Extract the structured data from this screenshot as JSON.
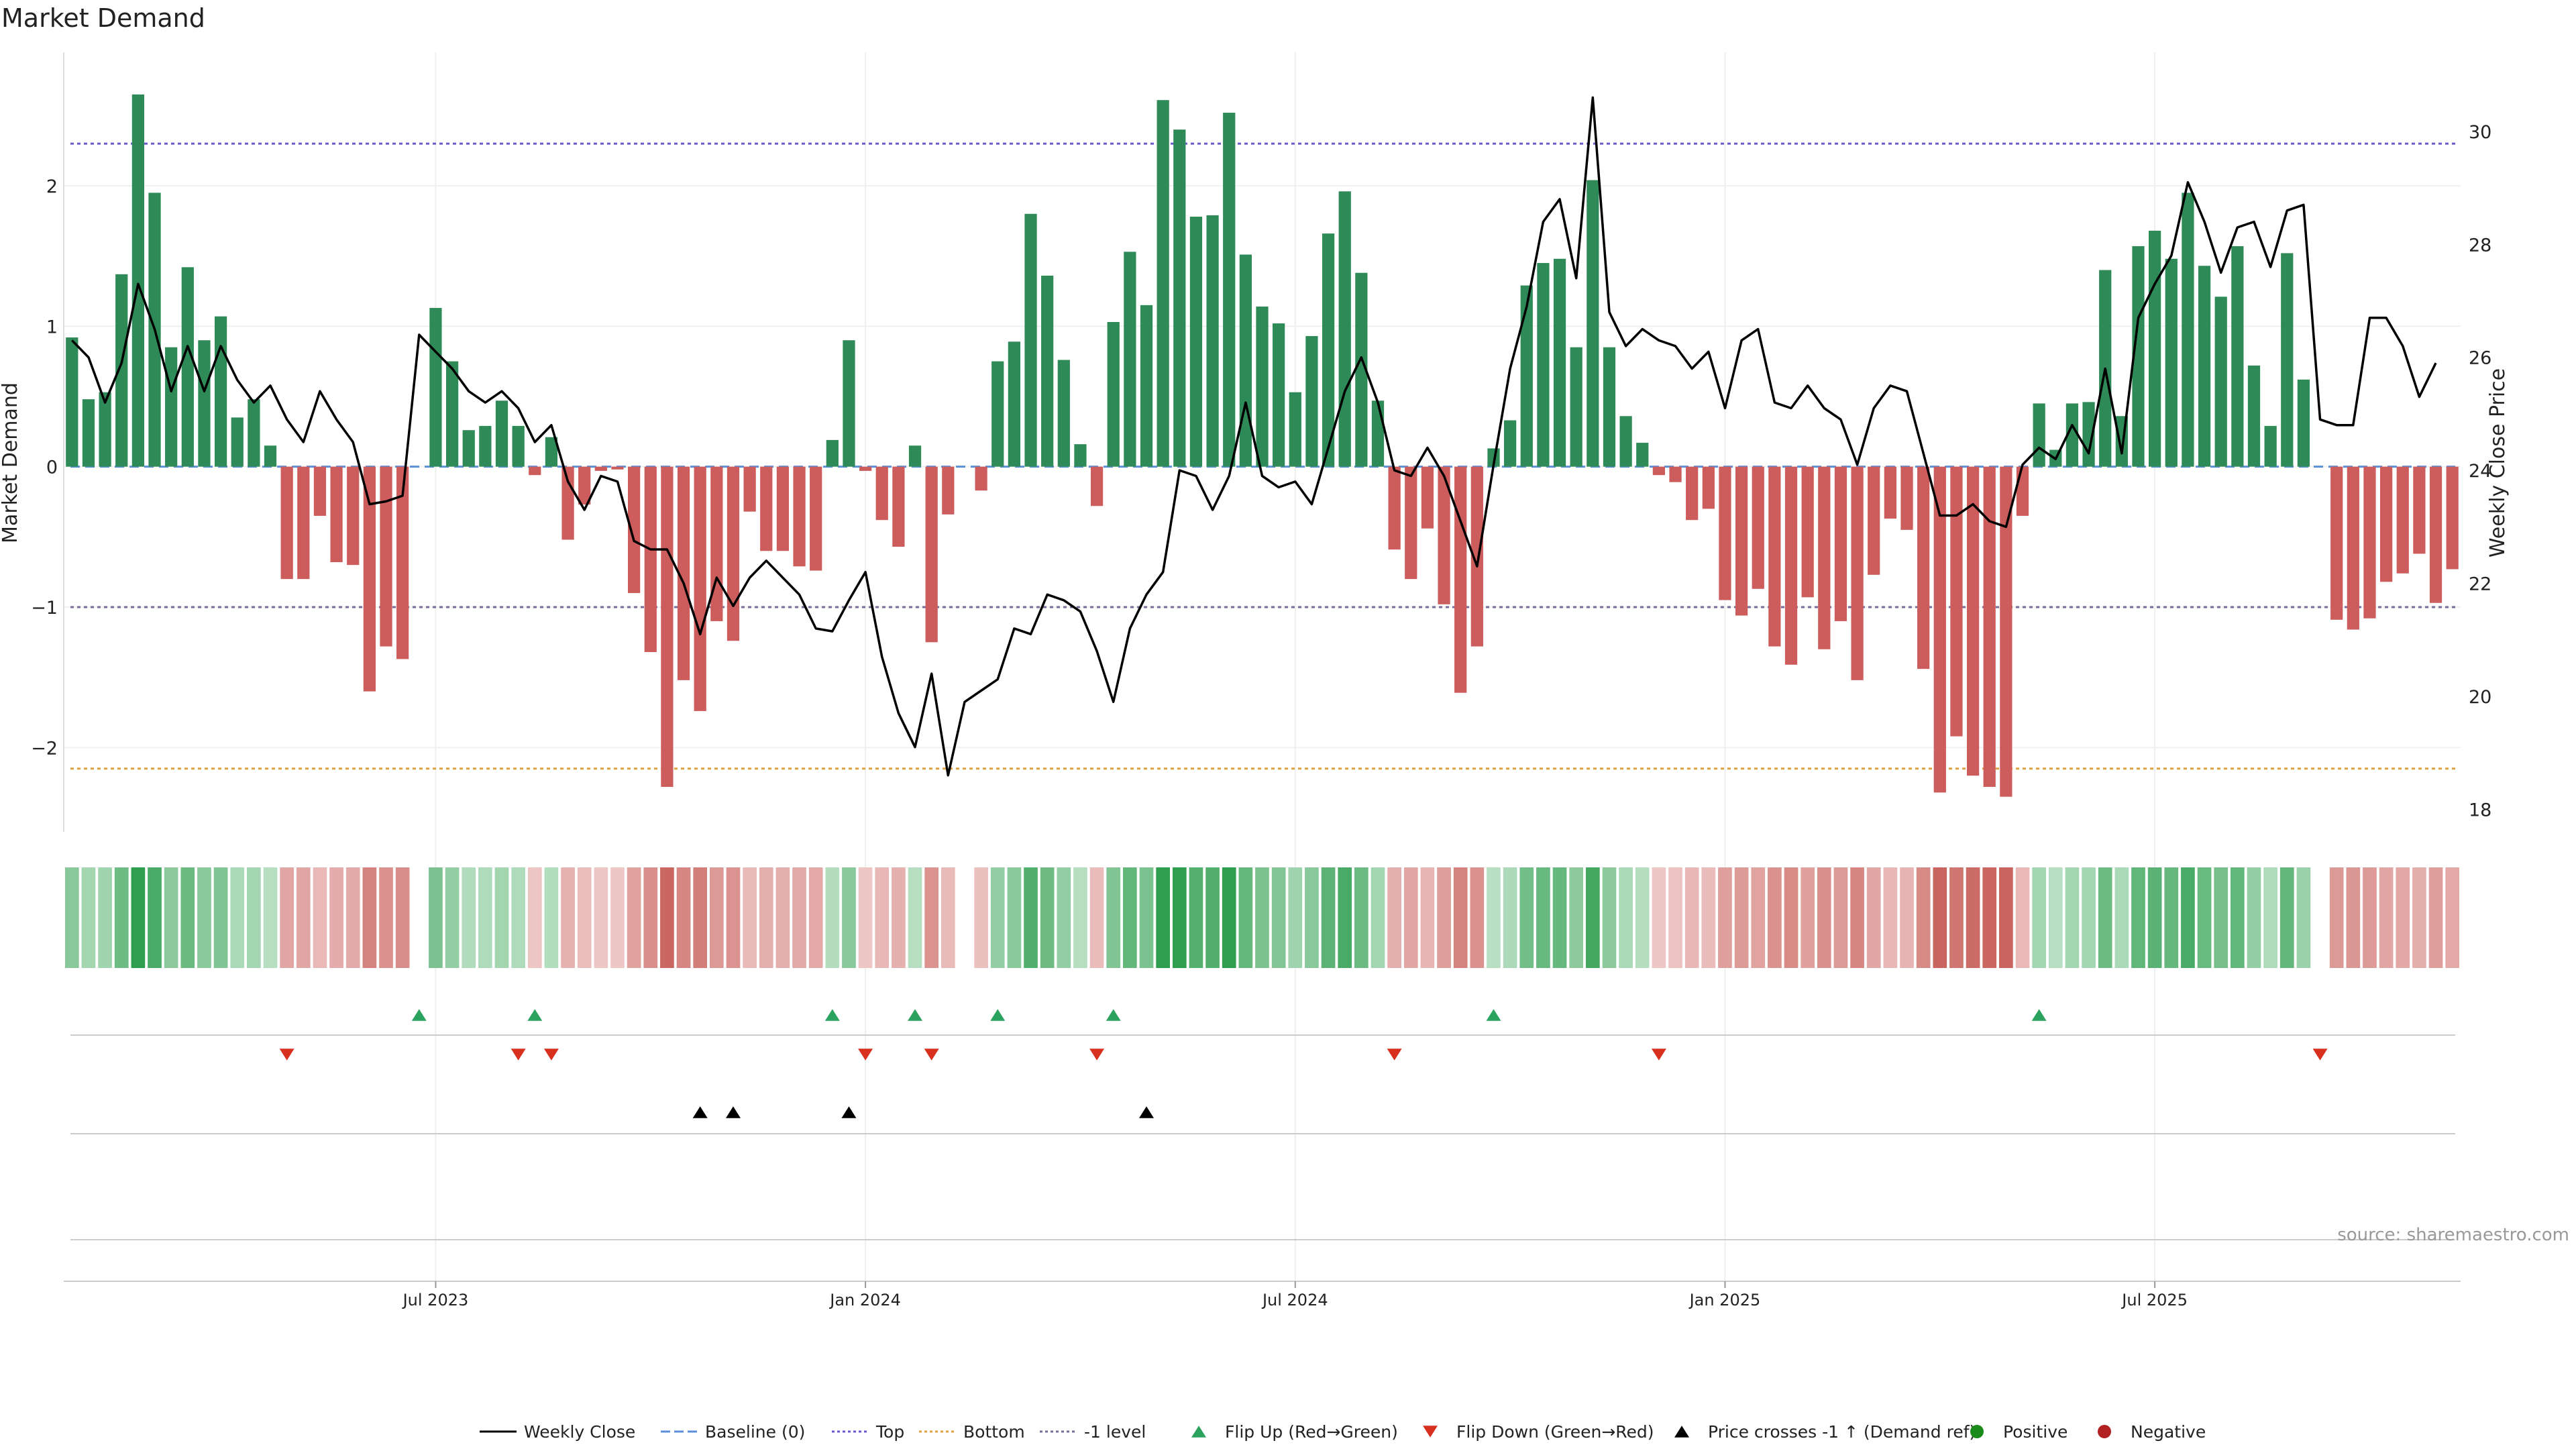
{
  "chart_data": {
    "type": "bar",
    "title": "Market Demand",
    "ylabel": "Market Demand",
    "y2label": "Weekly Close Price",
    "ylim": [
      -2.6,
      2.95
    ],
    "y2lim": [
      17.6,
      31.4
    ],
    "yticks": [
      -2,
      -1,
      0,
      1,
      2
    ],
    "yticklabels": [
      "−2",
      "−1",
      "0",
      "1",
      "2"
    ],
    "y2ticks": [
      18,
      20,
      22,
      24,
      26,
      28,
      30
    ],
    "top_level": 2.3,
    "bottom_level": -2.15,
    "minus1_level": -1.0,
    "date_ticks": [
      {
        "index": 22,
        "label": "Jul 2023"
      },
      {
        "index": 48,
        "label": "Jan 2024"
      },
      {
        "index": 74,
        "label": "Jul 2024"
      },
      {
        "index": 100,
        "label": "Jan 2025"
      },
      {
        "index": 126,
        "label": "Jul 2025"
      }
    ],
    "demand": [
      0.92,
      0.48,
      0.53,
      1.37,
      2.65,
      1.95,
      0.85,
      1.42,
      0.9,
      1.07,
      0.35,
      0.48,
      0.15,
      -0.8,
      -0.8,
      -0.35,
      -0.68,
      -0.7,
      -1.6,
      -1.28,
      -1.37,
      0,
      1.13,
      0.75,
      0.26,
      0.29,
      0.47,
      0.29,
      -0.06,
      0.21,
      -0.52,
      -0.27,
      -0.03,
      -0.02,
      -0.9,
      -1.32,
      -2.28,
      -1.52,
      -1.74,
      -1.1,
      -1.24,
      -0.32,
      -0.6,
      -0.6,
      -0.71,
      -0.74,
      0.19,
      0.9,
      -0.03,
      -0.38,
      -0.57,
      0.15,
      -1.25,
      -0.34,
      0,
      -0.17,
      0.75,
      0.89,
      1.8,
      1.36,
      0.76,
      0.16,
      -0.28,
      1.03,
      1.53,
      1.15,
      2.61,
      2.4,
      1.78,
      1.79,
      2.52,
      1.51,
      1.14,
      1.02,
      0.53,
      0.93,
      1.66,
      1.96,
      1.38,
      0.47,
      -0.59,
      -0.8,
      -0.44,
      -0.98,
      -1.61,
      -1.28,
      0.13,
      0.33,
      1.29,
      1.45,
      1.48,
      0.85,
      2.04,
      0.85,
      0.36,
      0.17,
      -0.06,
      -0.11,
      -0.38,
      -0.3,
      -0.95,
      -1.06,
      -0.87,
      -1.28,
      -1.41,
      -0.93,
      -1.3,
      -1.1,
      -1.52,
      -0.77,
      -0.37,
      -0.45,
      -1.44,
      -2.32,
      -1.92,
      -2.2,
      -2.28,
      -2.35,
      -0.35,
      0.45,
      0.12,
      0.45,
      0.46,
      1.4,
      0.36,
      1.57,
      1.68,
      1.48,
      1.95,
      1.43,
      1.21,
      1.57,
      0.72,
      0.29,
      1.52,
      0.62,
      0,
      -1.09,
      -1.16,
      -1.08,
      -0.82,
      -0.76,
      -0.62,
      -0.97,
      -0.73
    ],
    "price_x": [
      0,
      1,
      2,
      3,
      4,
      5,
      6,
      7,
      8,
      9,
      10,
      11,
      12,
      13,
      14,
      15,
      16,
      17,
      18,
      19,
      20,
      21,
      22,
      23,
      24,
      25,
      26,
      27,
      28,
      29,
      30,
      31,
      32,
      33,
      34,
      35,
      36,
      37,
      38,
      39,
      40,
      41,
      42,
      43,
      44,
      45,
      46,
      47,
      48,
      49,
      50,
      51,
      52,
      53,
      54,
      55,
      56,
      57,
      58,
      59,
      60,
      61,
      62,
      63,
      64,
      65,
      66,
      67,
      68,
      69,
      70,
      71,
      72,
      73,
      74,
      75,
      76,
      77,
      78,
      79,
      80,
      81,
      82,
      83,
      84,
      85,
      86,
      87,
      88,
      89,
      90,
      91,
      92,
      93,
      94,
      95,
      96,
      97,
      98,
      99,
      100,
      101,
      102,
      103,
      104,
      105,
      106,
      107,
      108,
      109,
      110,
      111,
      112,
      113,
      114,
      115,
      116,
      117,
      118,
      119,
      120,
      121,
      122,
      123,
      124,
      125,
      126,
      127,
      128,
      129,
      130,
      131,
      132,
      133,
      134,
      135,
      136,
      137,
      138,
      139,
      140,
      141,
      142,
      143
    ],
    "price": [
      26.3,
      26.0,
      25.2,
      25.9,
      27.3,
      26.5,
      25.4,
      26.2,
      25.4,
      26.2,
      25.6,
      25.2,
      25.5,
      24.9,
      24.5,
      25.4,
      24.9,
      24.5,
      23.4,
      23.45,
      23.55,
      26.4,
      26.1,
      25.8,
      25.4,
      25.2,
      25.4,
      25.1,
      24.5,
      24.8,
      23.8,
      23.3,
      23.9,
      23.8,
      22.75,
      22.6,
      22.6,
      22.0,
      21.1,
      22.1,
      21.6,
      22.1,
      22.4,
      22.1,
      21.8,
      21.2,
      21.15,
      21.7,
      22.2,
      20.7,
      19.7,
      19.1,
      20.4,
      18.6,
      19.9,
      20.1,
      20.3,
      21.2,
      21.1,
      21.8,
      21.7,
      21.5,
      20.8,
      19.9,
      21.2,
      21.8,
      22.2,
      24.0,
      23.9,
      23.3,
      23.9,
      25.2,
      23.9,
      23.7,
      23.8,
      23.4,
      24.4,
      25.4,
      26.0,
      25.2,
      24.0,
      23.9,
      24.4,
      23.9,
      23.1,
      22.3,
      24.1,
      25.8,
      26.9,
      28.4,
      28.8,
      27.4,
      30.6,
      26.8,
      26.2,
      26.5,
      26.3,
      26.2,
      25.8,
      26.1,
      25.1,
      26.3,
      26.5,
      25.2,
      25.1,
      25.5,
      25.1,
      24.9,
      24.1,
      25.1,
      25.5,
      25.4,
      24.3,
      23.2,
      23.2,
      23.4,
      23.1,
      23.0,
      24.1,
      24.4,
      24.2,
      24.8,
      24.3,
      25.8,
      24.3,
      26.7,
      27.3,
      27.8,
      29.1,
      28.4,
      27.5,
      28.3,
      28.4,
      27.6,
      28.6,
      28.7,
      24.9,
      24.8,
      24.8,
      26.7,
      26.7,
      26.2,
      25.3,
      25.9
    ],
    "flip_up": [
      21,
      28,
      46,
      51,
      56,
      63,
      86,
      119
    ],
    "flip_down": [
      13,
      27,
      29,
      48,
      52,
      62,
      80,
      96,
      136
    ],
    "price_cross": [
      38,
      40,
      47,
      65
    ],
    "legend": [
      {
        "key": "weekly-close",
        "label": "Weekly Close"
      },
      {
        "key": "baseline",
        "label": "Baseline (0)"
      },
      {
        "key": "top",
        "label": "Top"
      },
      {
        "key": "bottom",
        "label": "Bottom"
      },
      {
        "key": "minus1",
        "label": "-1 level"
      },
      {
        "key": "flip-up",
        "label": "Flip Up (Red→Green)"
      },
      {
        "key": "flip-down",
        "label": "Flip Down (Green→Red)"
      },
      {
        "key": "price-cross",
        "label": "Price crosses -1 ↑ (Demand ref)"
      },
      {
        "key": "positive",
        "label": "Positive"
      },
      {
        "key": "negative",
        "label": "Negative"
      }
    ],
    "colors": {
      "positive": "#2e8b57",
      "negative": "#cd5c5c",
      "price": "#000000",
      "top": "#6a5acd",
      "bottom": "#e0a040",
      "minus1": "#7a6a9a",
      "baseline": "#5b8fd8",
      "flip_up": "#2ca25f",
      "flip_down": "#d7301f",
      "cross": "#000000",
      "legend_pos": "#1a8a1a",
      "legend_neg": "#b22222"
    },
    "source": "source: sharemaestro.com"
  }
}
